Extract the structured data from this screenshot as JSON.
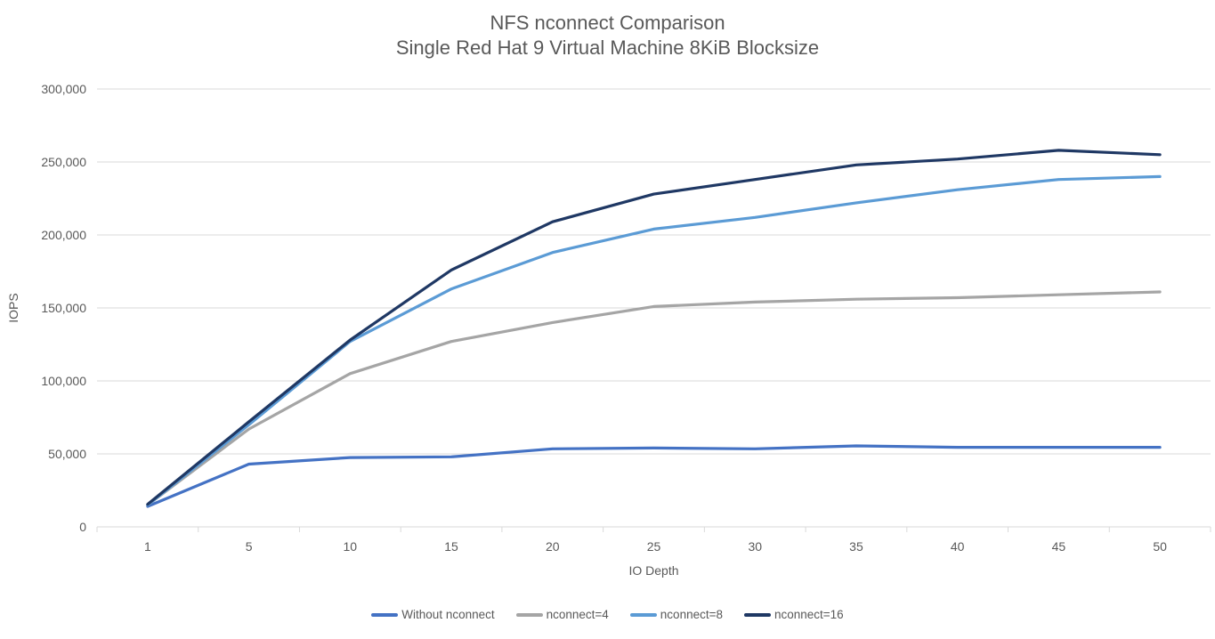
{
  "chart_data": {
    "type": "line",
    "title": "NFS nconnect Comparison",
    "subtitle": "Single Red Hat 9 Virtual Machine 8KiB Blocksize",
    "xlabel": "IO Depth",
    "ylabel": "IOPS",
    "categories": [
      1,
      5,
      10,
      15,
      20,
      25,
      30,
      35,
      40,
      45,
      50
    ],
    "ylim": [
      0,
      300000
    ],
    "ytick_interval": 50000,
    "ytick_labels": [
      "0",
      "50,000",
      "100,000",
      "150,000",
      "200,000",
      "250,000",
      "300,000"
    ],
    "grid": true,
    "legend_position": "bottom",
    "series": [
      {
        "name": "Without nconnect",
        "color": "#4472C4",
        "values": [
          14000,
          43000,
          47500,
          48000,
          53500,
          54000,
          53500,
          55500,
          54500,
          54500,
          54500
        ]
      },
      {
        "name": "nconnect=4",
        "color": "#A5A5A5",
        "values": [
          15000,
          67000,
          105000,
          127000,
          140000,
          151000,
          154000,
          156000,
          157000,
          159000,
          161000
        ]
      },
      {
        "name": "nconnect=8",
        "color": "#5B9BD5",
        "values": [
          15000,
          70000,
          127000,
          163000,
          188000,
          204000,
          212000,
          222000,
          231000,
          238000,
          240000
        ]
      },
      {
        "name": "nconnect=16",
        "color": "#1F3864",
        "values": [
          15500,
          72000,
          128000,
          176000,
          209000,
          228000,
          238000,
          248000,
          252000,
          258000,
          255000
        ]
      }
    ]
  },
  "colors": {
    "background": "#FFFFFF",
    "title_text": "#595959",
    "axis_text": "#595959",
    "gridline": "#D9D9D9",
    "axis_line": "#D9D9D9"
  }
}
